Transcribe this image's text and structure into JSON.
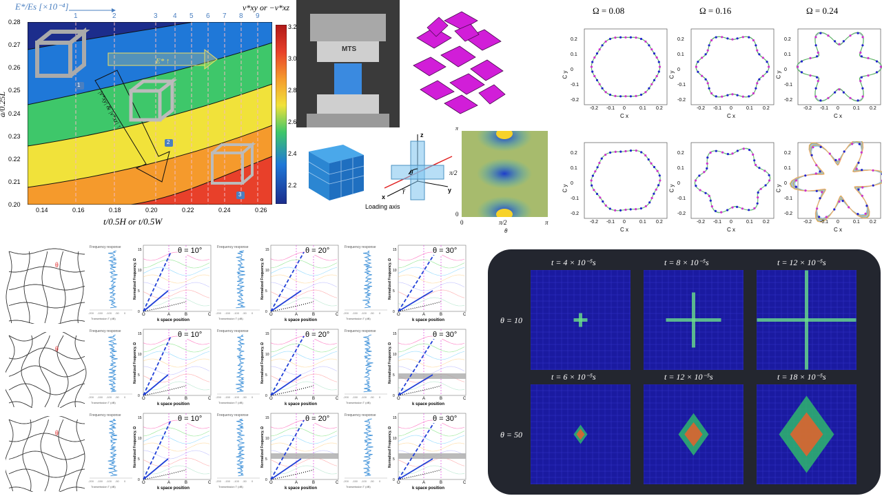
{
  "contour": {
    "top_label": "E*/Es [×10⁻⁴]",
    "top_ticks": [
      "1",
      "2",
      "3",
      "4",
      "5",
      "6",
      "7",
      "8",
      "9"
    ],
    "right_label": "ν*xy  or  −ν*xz",
    "ylabel": "a/0.25L",
    "xlabel": "t/0.5H  or  t/0.5W",
    "xticks": [
      "0.14",
      "0.16",
      "0.18",
      "0.20",
      "0.22",
      "0.24",
      "0.26"
    ],
    "yticks": [
      "0.28",
      "0.27",
      "0.26",
      "0.25",
      "0.24",
      "0.23",
      "0.22",
      "0.21",
      "0.20"
    ],
    "cbar_ticks": [
      "3.2",
      "3.0",
      "2.8",
      "2.6",
      "2.4",
      "2.2"
    ],
    "arrow1": "E* ↑",
    "arrow2": "|ν*xy| & |ν*xz| ↑",
    "badges": [
      "1",
      "2",
      "3"
    ]
  },
  "photo": {
    "brand": "MTS"
  },
  "unitcell": {
    "axis_z": "z",
    "axis_x": "x",
    "axis_y": "y",
    "theta": "θ",
    "gamma": "γ",
    "loading": "Loading axis"
  },
  "heatmap": {
    "top": "π",
    "mid": "π/2",
    "bottom": "0",
    "x0": "0",
    "xmid": "π/2",
    "xend": "π",
    "xlabel": "θ"
  },
  "omega": {
    "titles": [
      "Ω = 0.08",
      "Ω = 0.16",
      "Ω = 0.24"
    ],
    "xlabel": "C x",
    "ylabel": "C y",
    "ticks": [
      "-0.2",
      "-0.1",
      "0",
      "0.1",
      "0.2"
    ]
  },
  "dispersion": {
    "freq_title": "Frequency response",
    "trans_label": "Transmission T (dB)",
    "trans_ticks": [
      "-200",
      "-150",
      "-100",
      "-50",
      "0"
    ],
    "ylabel": "Normalized Frequency, Ω",
    "xlabel": "k space position",
    "kticks": [
      "O",
      "A",
      "B",
      "C"
    ],
    "yticks": [
      "15",
      "10",
      "5",
      "0"
    ],
    "angles": [
      "θ = 10°",
      "θ = 20°",
      "θ = 30°"
    ],
    "theta_mark": "θ"
  },
  "wave": {
    "row1": [
      "t = 4 × 10⁻⁵s",
      "t = 8 × 10⁻⁵s",
      "t = 12 × 10⁻⁵s"
    ],
    "row2": [
      "t = 6 × 10⁻⁵s",
      "t = 12 × 10⁻⁵s",
      "t = 18 × 10⁻⁵s"
    ],
    "labels": [
      "θ = 10",
      "θ = 50"
    ]
  }
}
